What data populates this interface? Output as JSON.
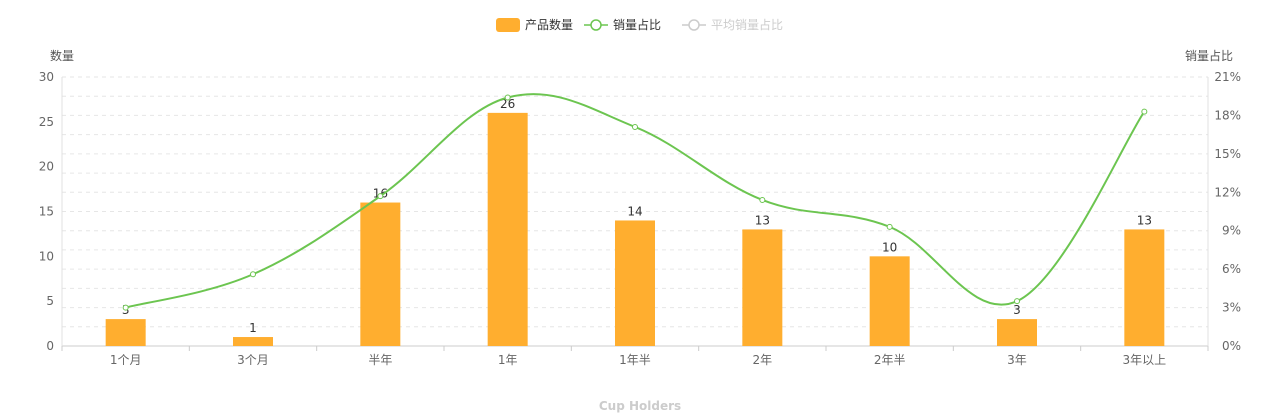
{
  "chart_data": {
    "type": "bar",
    "categories": [
      "1个月",
      "3个月",
      "半年",
      "1年",
      "1年半",
      "2年",
      "2年半",
      "3年",
      "3年以上"
    ],
    "series": [
      {
        "name": "产品数量",
        "type": "bar",
        "axis": "left",
        "color": "#FFAE2F",
        "values": [
          3,
          1,
          16,
          26,
          14,
          13,
          10,
          3,
          13
        ]
      },
      {
        "name": "销量占比",
        "type": "line",
        "axis": "right",
        "smooth": true,
        "color": "#6CC550",
        "values": [
          3.0,
          5.6,
          11.7,
          19.4,
          17.1,
          11.4,
          9.3,
          3.5,
          18.3
        ]
      }
    ],
    "legend": {
      "placement": "top-center",
      "items": [
        {
          "name": "产品数量",
          "color": "#FFAE2F",
          "active": true
        },
        {
          "name": "销量占比",
          "color": "#6CC550",
          "active": true
        },
        {
          "name": "平均销量占比",
          "color": "#cccccc",
          "active": false
        }
      ]
    },
    "ylabel_left": "数量",
    "ylabel_right": "销量占比",
    "ylim_left": [
      0,
      30
    ],
    "ylim_right": [
      0,
      21
    ],
    "yticks_left": [
      "0",
      "5",
      "10",
      "15",
      "20",
      "25",
      "30"
    ],
    "yticks_right": [
      "0%",
      "3%",
      "6%",
      "9%",
      "12%",
      "15%",
      "18%",
      "21%"
    ],
    "grid": true,
    "footer_text": "Cup Holders"
  }
}
